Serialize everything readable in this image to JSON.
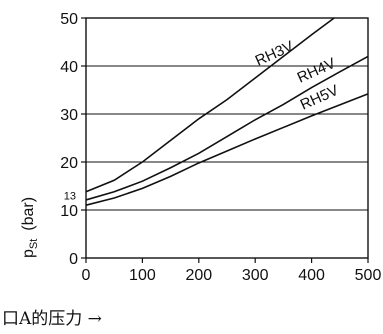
{
  "chart_data": {
    "type": "line",
    "title": "",
    "xlabel": "口A的压力 →",
    "ylabel_main": "p",
    "ylabel_sub": "St",
    "ylabel_unit": "(bar)",
    "xlim": [
      0,
      500
    ],
    "ylim": [
      0,
      50
    ],
    "xticks": [
      0,
      100,
      200,
      300,
      400,
      500
    ],
    "yticks": [
      0,
      10,
      20,
      30,
      40,
      50
    ],
    "extra_ytick_label": "13",
    "extra_ytick_value": 13,
    "grid": "horizontal",
    "series": [
      {
        "name": "RH3V",
        "x": [
          0,
          50,
          100,
          150,
          200,
          250,
          300,
          350,
          400,
          440
        ],
        "y": [
          13.8,
          16.2,
          20,
          24.5,
          29,
          33,
          37.5,
          42,
          46.5,
          50
        ]
      },
      {
        "name": "RH4V",
        "x": [
          0,
          50,
          100,
          150,
          200,
          250,
          300,
          350,
          400,
          450,
          500
        ],
        "y": [
          12.1,
          13.8,
          16,
          18.8,
          21.8,
          25.3,
          28.8,
          32,
          35.5,
          38.8,
          42
        ]
      },
      {
        "name": "RH5V",
        "x": [
          0,
          50,
          100,
          150,
          200,
          250,
          300,
          350,
          400,
          450,
          500
        ],
        "y": [
          11,
          12.5,
          14.5,
          17,
          19.8,
          22.3,
          24.8,
          27.2,
          29.6,
          31.9,
          34.2
        ]
      }
    ]
  }
}
